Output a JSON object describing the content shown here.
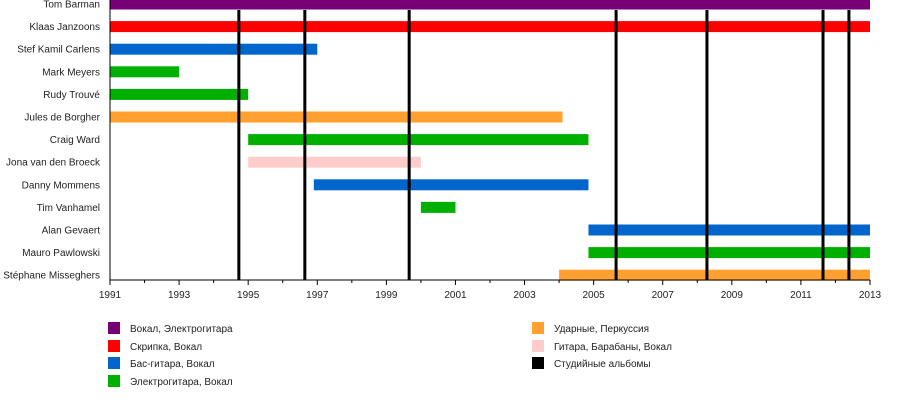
{
  "chart_data": {
    "type": "timeline",
    "xlim": [
      1991,
      2013
    ],
    "x_ticks": [
      1991,
      1993,
      1995,
      1997,
      1999,
      2001,
      2003,
      2005,
      2007,
      2009,
      2011,
      2013
    ],
    "roles": [
      {
        "label": "Вокал, Электрогитара",
        "color": "#770077"
      },
      {
        "label": "Скрипка, Вокал",
        "color": "#ff0000"
      },
      {
        "label": "Бас-гитара, Вокал",
        "color": "#0066cc"
      },
      {
        "label": "Электрогитара, Вокал",
        "color": "#00b000"
      },
      {
        "label": "Ударные, Перкуссия",
        "color": "#ffa030"
      },
      {
        "label": "Гитара, Барабаны, Вокал",
        "color": "#ffcccc"
      },
      {
        "label": "Студийные альбомы",
        "color": "#000000"
      }
    ],
    "members": [
      {
        "name": "Tom Barman",
        "role": 0,
        "start": 1991,
        "end": 2013
      },
      {
        "name": "Klaas Janzoons",
        "role": 1,
        "start": 1991,
        "end": 2013
      },
      {
        "name": "Stef Kamil Carlens",
        "role": 2,
        "start": 1991,
        "end": 1997
      },
      {
        "name": "Mark Meyers",
        "role": 3,
        "start": 1991,
        "end": 1993
      },
      {
        "name": "Rudy Trouvé",
        "role": 3,
        "start": 1991,
        "end": 1995
      },
      {
        "name": "Jules de Borgher",
        "role": 4,
        "start": 1991,
        "end": 2004.1
      },
      {
        "name": "Craig Ward",
        "role": 3,
        "start": 1995,
        "end": 2004.85
      },
      {
        "name": "Jona van den Broeck",
        "role": 5,
        "start": 1995,
        "end": 2000
      },
      {
        "name": "Danny Mommens",
        "role": 2,
        "start": 1996.9,
        "end": 2004.85
      },
      {
        "name": "Tim Vanhamel",
        "role": 3,
        "start": 2000,
        "end": 2001
      },
      {
        "name": "Alan Gevaert",
        "role": 2,
        "start": 2004.85,
        "end": 2013
      },
      {
        "name": "Mauro Pawlowski",
        "role": 3,
        "start": 2004.85,
        "end": 2013
      },
      {
        "name": "Stéphane Misseghers",
        "role": 4,
        "start": 2004,
        "end": 2013
      }
    ],
    "albums": [
      1994.73,
      1996.64,
      1999.66,
      2005.65,
      2008.28,
      2011.64,
      2012.39
    ],
    "grid": false,
    "legend": "bottom"
  }
}
